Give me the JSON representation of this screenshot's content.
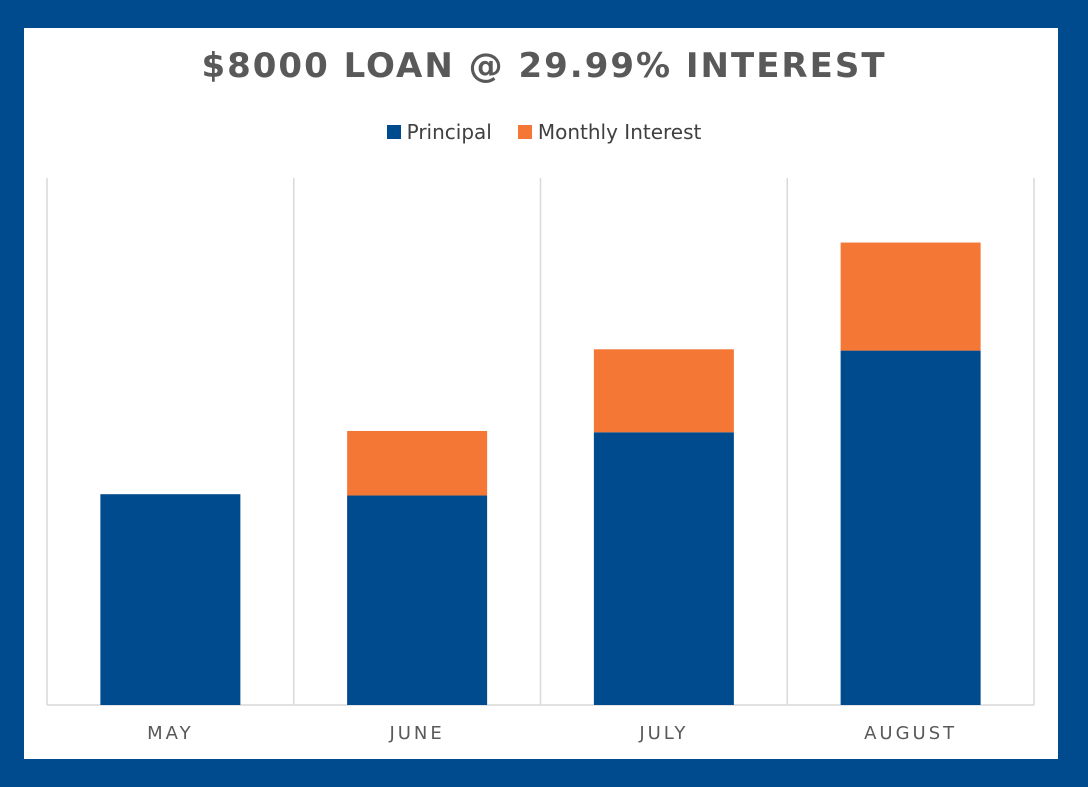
{
  "chart_data": {
    "type": "bar",
    "stacked": true,
    "title": "$8000 LOAN @ 29.99% INTEREST",
    "categories": [
      "MAY",
      "JUNE",
      "JULY",
      "AUGUST"
    ],
    "series": [
      {
        "name": "Principal",
        "color": "#004b8d",
        "values": [
          8000,
          7950,
          10350,
          13450
        ]
      },
      {
        "name": "Monthly Interest",
        "color": "#f47735",
        "values": [
          0,
          2450,
          3150,
          4100
        ]
      }
    ],
    "ylim": [
      0,
      20000
    ],
    "legend_position": "top",
    "grid": "vertical"
  }
}
